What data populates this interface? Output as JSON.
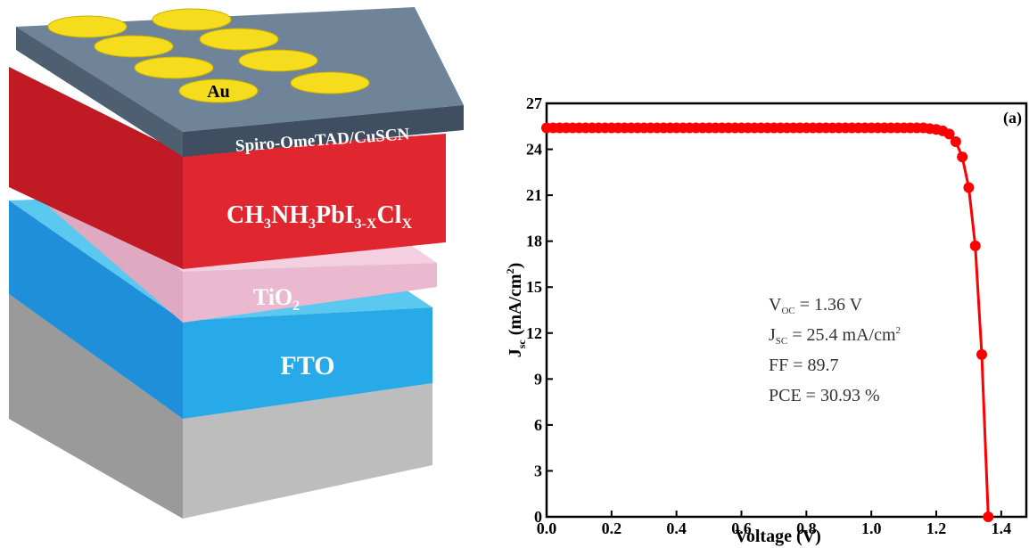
{
  "diagram": {
    "layers": [
      {
        "text": "Au"
      },
      {
        "text": "Spiro-OmeTAD/CuSCN"
      },
      {
        "parts": [
          "CH",
          "3",
          "NH",
          "3",
          "PbI",
          "3-X",
          "Cl",
          "X"
        ]
      },
      {
        "parts": [
          "TiO",
          "2"
        ]
      },
      {
        "text": "FTO"
      }
    ]
  },
  "chart_data": {
    "type": "line",
    "panel": "(a)",
    "x_label": "Voltage (V)",
    "y_label": {
      "symbol": "J",
      "sub": "sc",
      "unit": " (mA/cm",
      "sup": "2",
      "close": ")"
    },
    "annotations": [
      {
        "symbol": "V",
        "sub": "OC",
        "text": " = 1.36 V"
      },
      {
        "symbol": "J",
        "sub": "SC",
        "text": " = 25.4 mA/cm",
        "sup": "2"
      },
      {
        "text": "FF = 89.7"
      },
      {
        "text": "PCE = 30.93 %"
      }
    ],
    "xlim": [
      0,
      1.48
    ],
    "ylim": [
      0,
      27
    ],
    "xticks": [
      {
        "value": 0,
        "label": "0.0"
      },
      0.2,
      0.4,
      0.6,
      0.8,
      {
        "value": 1,
        "label": "1.0"
      },
      1.2,
      1.4
    ],
    "yticks": [
      0,
      3,
      6,
      9,
      12,
      15,
      18,
      21,
      24,
      27
    ],
    "x": [
      0,
      0.02,
      0.04,
      0.06,
      0.08,
      0.1,
      0.12,
      0.14,
      0.16,
      0.18,
      0.2,
      0.22,
      0.24,
      0.26,
      0.28,
      0.3,
      0.32,
      0.34,
      0.36,
      0.38,
      0.4,
      0.42,
      0.44,
      0.46,
      0.48,
      0.5,
      0.52,
      0.54,
      0.56,
      0.58,
      0.6,
      0.62,
      0.64,
      0.66,
      0.68,
      0.7,
      0.72,
      0.74,
      0.76,
      0.78,
      0.8,
      0.82,
      0.84,
      0.86,
      0.88,
      0.9,
      0.92,
      0.94,
      0.96,
      0.98,
      1.0,
      1.02,
      1.04,
      1.06,
      1.08,
      1.1,
      1.12,
      1.14,
      1.16,
      1.18,
      1.2,
      1.22,
      1.24,
      1.26,
      1.28,
      1.3,
      1.32,
      1.34,
      1.36
    ],
    "series": [
      {
        "color": "#ff0000",
        "values": [
          25.4,
          25.4,
          25.4,
          25.4,
          25.4,
          25.4,
          25.4,
          25.4,
          25.4,
          25.4,
          25.4,
          25.4,
          25.4,
          25.4,
          25.4,
          25.4,
          25.4,
          25.4,
          25.4,
          25.4,
          25.4,
          25.4,
          25.4,
          25.4,
          25.4,
          25.4,
          25.4,
          25.4,
          25.4,
          25.4,
          25.4,
          25.4,
          25.4,
          25.4,
          25.4,
          25.4,
          25.4,
          25.4,
          25.4,
          25.4,
          25.4,
          25.4,
          25.4,
          25.4,
          25.4,
          25.4,
          25.4,
          25.4,
          25.4,
          25.4,
          25.4,
          25.4,
          25.4,
          25.4,
          25.4,
          25.4,
          25.4,
          25.4,
          25.4,
          25.35,
          25.3,
          25.2,
          25.0,
          24.5,
          23.5,
          21.5,
          17.7,
          10.6,
          0
        ]
      }
    ]
  }
}
